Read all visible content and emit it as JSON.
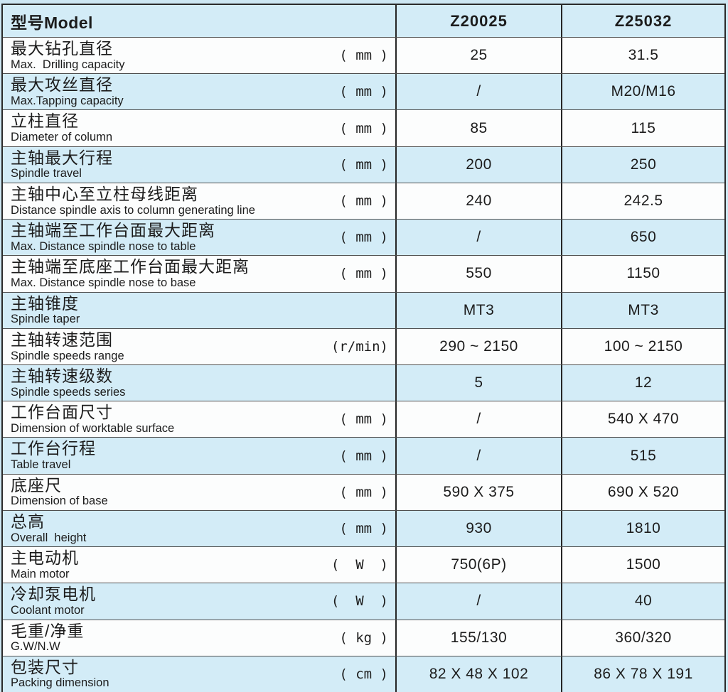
{
  "colors": {
    "page_bg": "#cde7f3",
    "row_blue": "#d3ecf7",
    "row_white": "#fcfdfd",
    "border_dark": "#262626",
    "border_line": "#4f4f4f",
    "text": "#1c1c1c"
  },
  "table": {
    "header": {
      "model_label": "型号Model",
      "models": [
        "Z20025",
        "Z25032"
      ]
    },
    "rows": [
      {
        "cn": "最大钻孔直径",
        "en": "Max.  Drilling capacity",
        "unit": "( mm )",
        "v1": "25",
        "v2": "31.5"
      },
      {
        "cn": "最大攻丝直径",
        "en": "Max.Tapping capacity",
        "unit": "( mm )",
        "v1": "/",
        "v2": "M20/M16"
      },
      {
        "cn": "立柱直径",
        "en": "Diameter of column",
        "unit": "( mm )",
        "v1": "85",
        "v2": "115"
      },
      {
        "cn": "主轴最大行程",
        "en": "Spindle travel",
        "unit": "( mm )",
        "v1": "200",
        "v2": "250"
      },
      {
        "cn": "主轴中心至立柱母线距离",
        "en": "Distance spindle axis to column generating line",
        "unit": "( mm )",
        "v1": "240",
        "v2": "242.5"
      },
      {
        "cn": "主轴端至工作台面最大距离",
        "en": "Max. Distance spindle nose to table",
        "unit": "( mm )",
        "v1": "/",
        "v2": "650"
      },
      {
        "cn": "主轴端至底座工作台面最大距离",
        "en": "Max. Distance spindle nose to base",
        "unit": "( mm )",
        "v1": "550",
        "v2": "1150"
      },
      {
        "cn": "主轴锥度",
        "en": "Spindle taper",
        "unit": "",
        "v1": "MT3",
        "v2": "MT3"
      },
      {
        "cn": "主轴转速范围",
        "en": "Spindle speeds range",
        "unit": "(r/min)",
        "v1": "290 ~ 2150",
        "v2": "100 ~ 2150"
      },
      {
        "cn": "主轴转速级数",
        "en": "Spindle speeds series",
        "unit": "",
        "v1": "5",
        "v2": "12"
      },
      {
        "cn": "工作台面尺寸",
        "en": "Dimension of worktable surface",
        "unit": "( mm )",
        "v1": "/",
        "v2": "540 X 470"
      },
      {
        "cn": "工作台行程",
        "en": "Table travel",
        "unit": "( mm )",
        "v1": "/",
        "v2": "515"
      },
      {
        "cn": "底座尺",
        "en": "Dimension of base",
        "unit": "( mm )",
        "v1": "590 X 375",
        "v2": "690 X 520"
      },
      {
        "cn": "总高",
        "en": "Overall  height",
        "unit": "( mm )",
        "v1": "930",
        "v2": "1810"
      },
      {
        "cn": "主电动机",
        "en": "Main motor",
        "unit": "(  W  )",
        "v1": "750(6P)",
        "v2": "1500"
      },
      {
        "cn": "冷却泵电机",
        "en": "Coolant motor",
        "unit": "(  W  )",
        "v1": "/",
        "v2": "40"
      },
      {
        "cn": "毛重/净重",
        "en": "G.W/N.W",
        "unit": "( kg )",
        "v1": "155/130",
        "v2": "360/320"
      },
      {
        "cn": "包装尺寸",
        "en": "Packing dimension",
        "unit": "( cm )",
        "v1": "82 X 48 X 102",
        "v2": "86 X 78 X 191"
      }
    ]
  }
}
